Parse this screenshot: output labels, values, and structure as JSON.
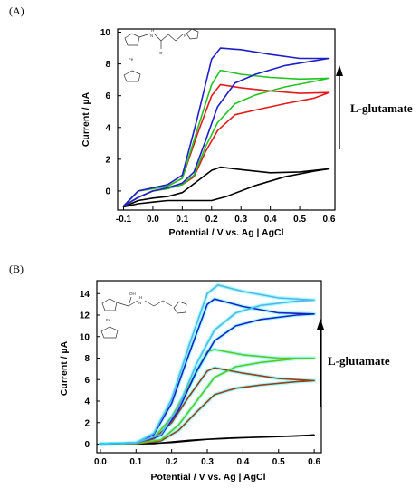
{
  "chart_data": [
    {
      "type": "line",
      "panel_label": "(A)",
      "xlabel": "Potential / V vs. Ag | AgCl",
      "ylabel": "Current / µA",
      "xlim": [
        -0.12,
        0.62
      ],
      "ylim": [
        -1.2,
        10.2
      ],
      "xticks": [
        -0.1,
        0.0,
        0.1,
        0.2,
        0.3,
        0.4,
        0.5,
        0.6
      ],
      "xtick_labels": [
        "-0.1",
        "0.0",
        "0.1",
        "0.2",
        "0.3",
        "0.4",
        "0.5",
        "0.6"
      ],
      "yticks": [
        0,
        2,
        4,
        6,
        8,
        10
      ],
      "ytick_labels": [
        "0",
        "2",
        "4",
        "6",
        "8",
        "10"
      ],
      "grid": false,
      "annotation": "L-glutamate",
      "structure_labels": [
        "H",
        "N",
        "O",
        "Fe"
      ],
      "colors": {
        "black": "#000000",
        "red": "#e31a1c",
        "green": "#22c422",
        "blue": "#1f1fc8"
      },
      "series": [
        {
          "color": "black",
          "points": [
            [
              -0.1,
              -1.0
            ],
            [
              -0.05,
              -0.6
            ],
            [
              0.0,
              -0.45
            ],
            [
              0.05,
              -0.35
            ],
            [
              0.1,
              -0.1
            ],
            [
              0.15,
              0.6
            ],
            [
              0.2,
              1.3
            ],
            [
              0.23,
              1.5
            ],
            [
              0.3,
              1.35
            ],
            [
              0.4,
              1.15
            ],
            [
              0.5,
              1.2
            ],
            [
              0.6,
              1.4
            ],
            [
              0.55,
              1.25
            ],
            [
              0.45,
              0.9
            ],
            [
              0.35,
              0.35
            ],
            [
              0.25,
              -0.35
            ],
            [
              0.2,
              -0.6
            ],
            [
              0.15,
              -0.6
            ],
            [
              0.05,
              -0.6
            ],
            [
              0.0,
              -0.7
            ],
            [
              -0.05,
              -0.8
            ],
            [
              -0.1,
              -1.0
            ]
          ]
        },
        {
          "color": "red",
          "points": [
            [
              -0.1,
              -0.95
            ],
            [
              -0.05,
              0.0
            ],
            [
              0.0,
              0.15
            ],
            [
              0.05,
              0.3
            ],
            [
              0.1,
              0.8
            ],
            [
              0.15,
              3.5
            ],
            [
              0.2,
              6.0
            ],
            [
              0.23,
              6.7
            ],
            [
              0.3,
              6.5
            ],
            [
              0.4,
              6.3
            ],
            [
              0.5,
              6.15
            ],
            [
              0.6,
              6.2
            ],
            [
              0.55,
              5.85
            ],
            [
              0.45,
              5.5
            ],
            [
              0.35,
              5.1
            ],
            [
              0.28,
              4.8
            ],
            [
              0.22,
              3.8
            ],
            [
              0.18,
              2.5
            ],
            [
              0.14,
              0.9
            ],
            [
              0.1,
              0.4
            ],
            [
              0.05,
              0.15
            ],
            [
              0.0,
              0.0
            ],
            [
              -0.05,
              -0.4
            ],
            [
              -0.1,
              -0.95
            ]
          ]
        },
        {
          "color": "green",
          "points": [
            [
              -0.1,
              -0.95
            ],
            [
              -0.05,
              0.0
            ],
            [
              0.0,
              0.15
            ],
            [
              0.05,
              0.3
            ],
            [
              0.1,
              0.8
            ],
            [
              0.15,
              3.8
            ],
            [
              0.2,
              6.7
            ],
            [
              0.23,
              7.6
            ],
            [
              0.3,
              7.35
            ],
            [
              0.4,
              7.15
            ],
            [
              0.5,
              7.05
            ],
            [
              0.6,
              7.1
            ],
            [
              0.55,
              6.9
            ],
            [
              0.45,
              6.55
            ],
            [
              0.35,
              6.05
            ],
            [
              0.28,
              5.5
            ],
            [
              0.22,
              4.3
            ],
            [
              0.18,
              2.8
            ],
            [
              0.14,
              1.0
            ],
            [
              0.1,
              0.4
            ],
            [
              0.05,
              0.15
            ],
            [
              0.0,
              0.0
            ],
            [
              -0.05,
              -0.4
            ],
            [
              -0.1,
              -0.95
            ]
          ]
        },
        {
          "color": "blue",
          "points": [
            [
              -0.1,
              -0.95
            ],
            [
              -0.05,
              0.0
            ],
            [
              0.0,
              0.2
            ],
            [
              0.05,
              0.4
            ],
            [
              0.1,
              1.0
            ],
            [
              0.15,
              4.5
            ],
            [
              0.2,
              8.3
            ],
            [
              0.23,
              9.0
            ],
            [
              0.3,
              8.9
            ],
            [
              0.4,
              8.6
            ],
            [
              0.5,
              8.35
            ],
            [
              0.6,
              8.35
            ],
            [
              0.55,
              8.2
            ],
            [
              0.45,
              7.9
            ],
            [
              0.35,
              7.35
            ],
            [
              0.28,
              6.8
            ],
            [
              0.22,
              5.3
            ],
            [
              0.18,
              3.2
            ],
            [
              0.14,
              1.2
            ],
            [
              0.1,
              0.5
            ],
            [
              0.05,
              0.2
            ],
            [
              0.0,
              0.0
            ],
            [
              -0.05,
              -0.4
            ],
            [
              -0.1,
              -0.95
            ]
          ]
        }
      ]
    },
    {
      "type": "line",
      "panel_label": "(B)",
      "xlabel": "Potential / V vs. Ag | AgCl",
      "ylabel": "Current / µA",
      "xlim": [
        -0.01,
        0.62
      ],
      "ylim": [
        -0.8,
        15.2
      ],
      "xticks": [
        0.0,
        0.1,
        0.2,
        0.3,
        0.4,
        0.5,
        0.6
      ],
      "xtick_labels": [
        "0.0",
        "0.1",
        "0.2",
        "0.3",
        "0.4",
        "0.5",
        "0.6"
      ],
      "yticks": [
        0,
        2,
        4,
        6,
        8,
        10,
        12,
        14
      ],
      "ytick_labels": [
        "0",
        "2",
        "4",
        "6",
        "8",
        "10",
        "12",
        "14"
      ],
      "grid": false,
      "annotation": "L-glutamate",
      "structure_labels": [
        "OH",
        "H",
        "N",
        "Fe"
      ],
      "colors": {
        "black": "#000000",
        "brown": "#9a3d1a",
        "green": "#66c41c",
        "blue": "#1f1fc8",
        "lightblue": "#5ab4e8",
        "cyan": "#00ffff"
      },
      "series": [
        {
          "color": "black",
          "points": [
            [
              0.0,
              0.0
            ],
            [
              0.1,
              0.02
            ],
            [
              0.2,
              0.15
            ],
            [
              0.3,
              0.45
            ],
            [
              0.4,
              0.6
            ],
            [
              0.5,
              0.7
            ],
            [
              0.6,
              0.85
            ],
            [
              0.55,
              0.75
            ],
            [
              0.45,
              0.65
            ],
            [
              0.35,
              0.55
            ],
            [
              0.25,
              0.35
            ],
            [
              0.15,
              0.05
            ],
            [
              0.05,
              0.0
            ],
            [
              0.0,
              0.0
            ]
          ]
        },
        {
          "color": "brown",
          "points": [
            [
              0.0,
              0.0
            ],
            [
              0.1,
              0.05
            ],
            [
              0.15,
              0.5
            ],
            [
              0.2,
              2.0
            ],
            [
              0.25,
              4.5
            ],
            [
              0.3,
              6.8
            ],
            [
              0.32,
              7.1
            ],
            [
              0.4,
              6.6
            ],
            [
              0.5,
              6.1
            ],
            [
              0.6,
              5.9
            ],
            [
              0.55,
              5.8
            ],
            [
              0.45,
              5.5
            ],
            [
              0.38,
              5.2
            ],
            [
              0.32,
              4.6
            ],
            [
              0.27,
              3.0
            ],
            [
              0.22,
              1.3
            ],
            [
              0.17,
              0.3
            ],
            [
              0.1,
              0.05
            ],
            [
              0.0,
              0.0
            ]
          ]
        },
        {
          "color": "green",
          "points": [
            [
              0.0,
              0.0
            ],
            [
              0.1,
              0.05
            ],
            [
              0.15,
              0.6
            ],
            [
              0.2,
              2.5
            ],
            [
              0.25,
              5.5
            ],
            [
              0.3,
              8.6
            ],
            [
              0.32,
              8.8
            ],
            [
              0.4,
              8.3
            ],
            [
              0.5,
              8.0
            ],
            [
              0.6,
              8.0
            ],
            [
              0.55,
              7.95
            ],
            [
              0.45,
              7.6
            ],
            [
              0.38,
              7.2
            ],
            [
              0.32,
              6.2
            ],
            [
              0.27,
              4.0
            ],
            [
              0.22,
              1.8
            ],
            [
              0.17,
              0.4
            ],
            [
              0.1,
              0.05
            ],
            [
              0.0,
              0.0
            ]
          ]
        },
        {
          "color": "blue",
          "points": [
            [
              0.0,
              0.0
            ],
            [
              0.1,
              0.1
            ],
            [
              0.15,
              0.9
            ],
            [
              0.2,
              3.8
            ],
            [
              0.25,
              8.5
            ],
            [
              0.3,
              13.0
            ],
            [
              0.32,
              13.5
            ],
            [
              0.4,
              12.8
            ],
            [
              0.5,
              12.2
            ],
            [
              0.6,
              12.1
            ],
            [
              0.55,
              12.0
            ],
            [
              0.45,
              11.6
            ],
            [
              0.38,
              11.0
            ],
            [
              0.32,
              9.6
            ],
            [
              0.27,
              6.8
            ],
            [
              0.22,
              3.2
            ],
            [
              0.17,
              0.8
            ],
            [
              0.1,
              0.1
            ],
            [
              0.0,
              0.0
            ]
          ]
        },
        {
          "color": "lightblue",
          "points": [
            [
              0.0,
              0.0
            ],
            [
              0.1,
              0.1
            ],
            [
              0.15,
              1.0
            ],
            [
              0.2,
              4.2
            ],
            [
              0.25,
              9.3
            ],
            [
              0.3,
              14.0
            ],
            [
              0.33,
              14.8
            ],
            [
              0.4,
              14.2
            ],
            [
              0.5,
              13.6
            ],
            [
              0.6,
              13.4
            ],
            [
              0.55,
              13.3
            ],
            [
              0.45,
              12.9
            ],
            [
              0.38,
              12.2
            ],
            [
              0.32,
              10.6
            ],
            [
              0.27,
              7.5
            ],
            [
              0.22,
              3.5
            ],
            [
              0.17,
              0.9
            ],
            [
              0.1,
              0.1
            ],
            [
              0.0,
              0.0
            ]
          ]
        }
      ]
    }
  ]
}
